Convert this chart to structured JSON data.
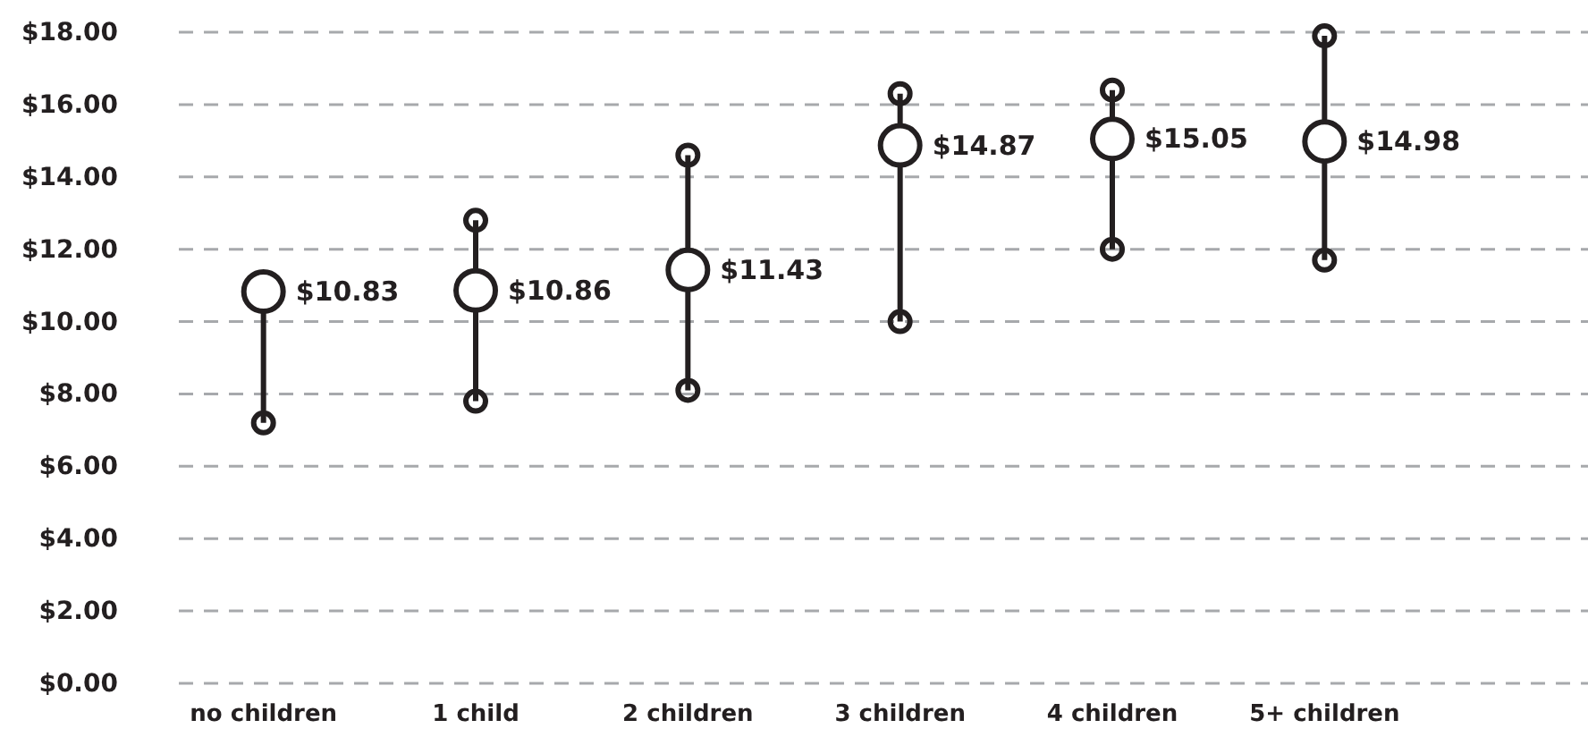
{
  "chart_data": {
    "type": "scatter",
    "categories": [
      "no children",
      "1 child",
      "2 children",
      "3 children",
      "4 children",
      "5+ children"
    ],
    "series": [
      {
        "color": "#231f20",
        "marker": "circle",
        "values": [
          10.83,
          10.86,
          11.43,
          14.87,
          15.05,
          14.98
        ],
        "value_labels": [
          "$10.83",
          "$10.86",
          "$11.43",
          "$14.87",
          "$15.05",
          "$14.98"
        ],
        "errors": [
          [
            7.2,
            10.83
          ],
          [
            7.8,
            12.8
          ],
          [
            8.1,
            14.6
          ],
          [
            10.0,
            16.3
          ],
          [
            12.0,
            16.4
          ],
          [
            11.7,
            17.9
          ]
        ]
      }
    ],
    "ylim": [
      0,
      18
    ],
    "yticks": [
      {
        "value": 0,
        "label": "$0.00"
      },
      {
        "value": 2,
        "label": "$2.00"
      },
      {
        "value": 4,
        "label": "$4.00"
      },
      {
        "value": 6,
        "label": "$6.00"
      },
      {
        "value": 8,
        "label": "$8.00"
      },
      {
        "value": 10,
        "label": "$10.00"
      },
      {
        "value": 12,
        "label": "$12.00"
      },
      {
        "value": 14,
        "label": "$14.00"
      },
      {
        "value": 16,
        "label": "$16.00"
      },
      {
        "value": 18,
        "label": "$18.00"
      }
    ],
    "grid": "y",
    "line_style": "dashed"
  }
}
